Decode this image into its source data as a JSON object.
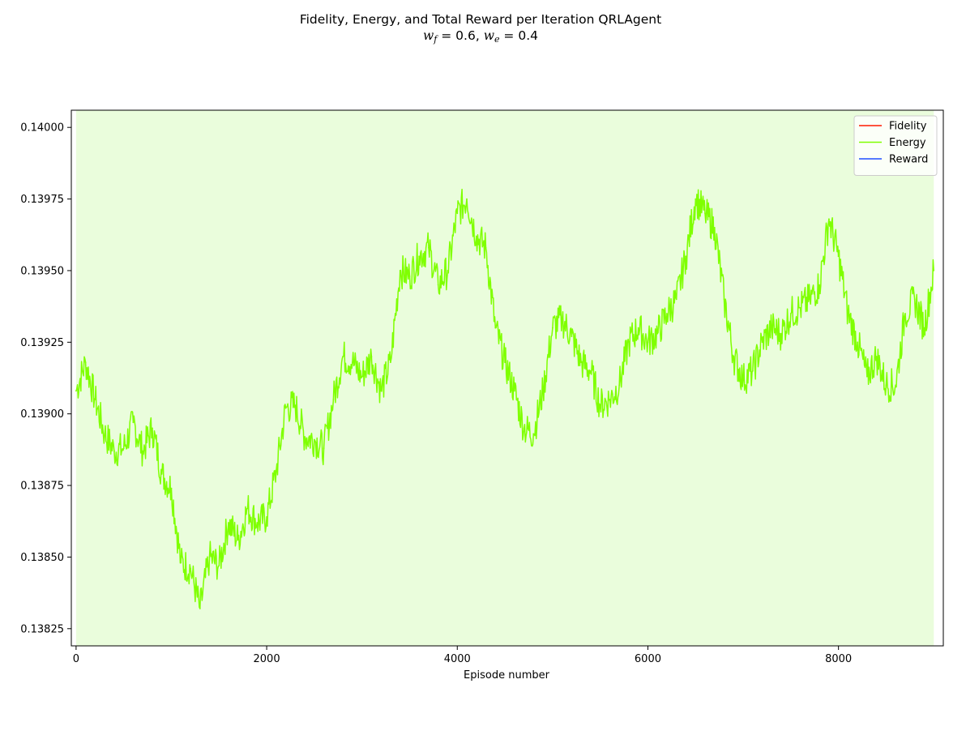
{
  "chart_data": {
    "type": "line",
    "title": "Fidelity, Energy, and Total Reward per Iteration QRLAgent",
    "subtitle": {
      "wf_symbol": "w",
      "wf_sub": "f",
      "wf_value": " = 0.6, ",
      "we_symbol": "w",
      "we_sub": "e",
      "we_value": " = 0.4"
    },
    "xlabel": "Episode number",
    "ylabel": "",
    "xlim": [
      -50,
      9100
    ],
    "ylim": [
      0.13819,
      0.14006
    ],
    "xticks": [
      0,
      2000,
      4000,
      6000,
      8000
    ],
    "xtick_labels": [
      "0",
      "2000",
      "4000",
      "6000",
      "8000"
    ],
    "yticks": [
      0.13825,
      0.1385,
      0.13875,
      0.139,
      0.13925,
      0.1395,
      0.13975,
      0.14
    ],
    "ytick_labels": [
      "0.13825",
      "0.13850",
      "0.13875",
      "0.13900",
      "0.13925",
      "0.13950",
      "0.13975",
      "0.14000"
    ],
    "grid": false,
    "background_color": "#eafddc",
    "legend": {
      "placement": "top-right",
      "entries": [
        {
          "label": "Fidelity",
          "color": "#ff1a00"
        },
        {
          "label": "Energy",
          "color": "#7fff00"
        },
        {
          "label": "Reward",
          "color": "#1f4fff"
        }
      ]
    },
    "series": [
      {
        "name": "Energy",
        "color": "#7fff00",
        "x": [
          0,
          100,
          200,
          300,
          400,
          500,
          600,
          700,
          800,
          900,
          1000,
          1100,
          1200,
          1300,
          1400,
          1500,
          1600,
          1700,
          1800,
          1900,
          2000,
          2100,
          2200,
          2300,
          2400,
          2500,
          2600,
          2700,
          2800,
          2900,
          3000,
          3100,
          3200,
          3300,
          3400,
          3500,
          3600,
          3700,
          3800,
          3900,
          4000,
          4100,
          4200,
          4300,
          4400,
          4500,
          4600,
          4700,
          4800,
          4900,
          5000,
          5100,
          5200,
          5300,
          5400,
          5500,
          5600,
          5700,
          5800,
          5900,
          6000,
          6100,
          6200,
          6300,
          6400,
          6500,
          6600,
          6700,
          6800,
          6900,
          7000,
          7100,
          7200,
          7300,
          7400,
          7500,
          7600,
          7700,
          7800,
          7900,
          8000,
          8100,
          8200,
          8300,
          8400,
          8500,
          8600,
          8700,
          8800,
          8900,
          9000
        ],
        "y": [
          0.13908,
          0.13918,
          0.13905,
          0.13893,
          0.13887,
          0.13888,
          0.13897,
          0.13887,
          0.13895,
          0.13879,
          0.13874,
          0.13848,
          0.13846,
          0.13832,
          0.1385,
          0.13847,
          0.13862,
          0.13856,
          0.13867,
          0.13862,
          0.13864,
          0.1388,
          0.13902,
          0.13903,
          0.13892,
          0.13891,
          0.13888,
          0.13905,
          0.1392,
          0.13918,
          0.13913,
          0.1392,
          0.13908,
          0.13918,
          0.1395,
          0.13948,
          0.13955,
          0.13958,
          0.13945,
          0.1395,
          0.1397,
          0.13975,
          0.13962,
          0.13958,
          0.1393,
          0.13918,
          0.13908,
          0.13895,
          0.13893,
          0.13908,
          0.1393,
          0.13933,
          0.13927,
          0.13918,
          0.13915,
          0.13903,
          0.13905,
          0.1391,
          0.13925,
          0.1393,
          0.13925,
          0.13928,
          0.13935,
          0.1394,
          0.13955,
          0.13975,
          0.1397,
          0.13965,
          0.1394,
          0.1392,
          0.13912,
          0.13915,
          0.13925,
          0.1393,
          0.13928,
          0.13935,
          0.13937,
          0.1394,
          0.13945,
          0.13968,
          0.13955,
          0.13935,
          0.13925,
          0.13913,
          0.1392,
          0.1391,
          0.1391,
          0.13935,
          0.1394,
          0.1393,
          0.1395
        ]
      }
    ]
  }
}
